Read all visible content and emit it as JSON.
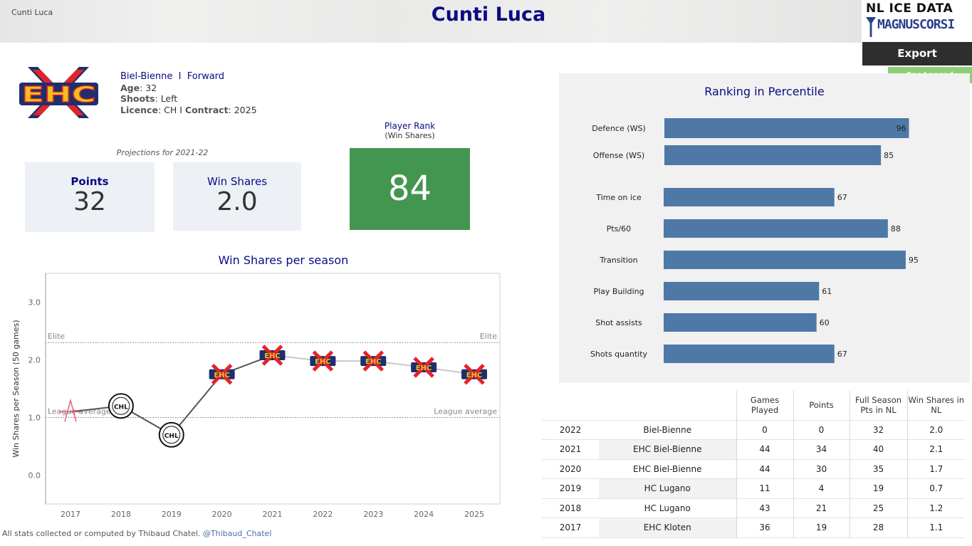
{
  "header": {
    "corner_text": "Cunti Luca",
    "title": "Cunti Luca",
    "logo_line1": "NL ICE DATA",
    "logo_line2": "MAGNUSCORSI",
    "export_label": "Export",
    "legend_label": "See Legend"
  },
  "player": {
    "team": "Biel-Bienne",
    "separator": "I",
    "position": "Forward",
    "age_label": "Age",
    "age": "32",
    "shoots_label": "Shoots",
    "shoots": "Left",
    "licence_label": "Licence",
    "licence": "CH",
    "contract_label": "Contract",
    "contract": "2025",
    "team_logo_text": "EHC"
  },
  "projections": {
    "label": "Projections for 2021-22",
    "points_label": "Points",
    "points": "32",
    "ws_label": "Win Shares",
    "ws": "2.0"
  },
  "player_rank": {
    "label": "Player Rank",
    "sublabel": "(Win Shares)",
    "value": "84",
    "color": "#43964f"
  },
  "ws_chart_title": "Win Shares per season",
  "percentile_title": "Ranking in Percentile",
  "chart_data": [
    {
      "type": "line",
      "title": "Win Shares per season",
      "ylabel": "Win Shares per Season (50 games)",
      "x": [
        "2017",
        "2018",
        "2019",
        "2020",
        "2021",
        "2022",
        "2023",
        "2024",
        "2025"
      ],
      "yticks": [
        "0.0",
        "1.0",
        "2.0",
        "3.0"
      ],
      "ylim": [
        -0.5,
        3.5
      ],
      "series": [
        {
          "values": [
            1.1,
            1.2,
            0.7,
            1.75,
            2.08,
            1.98,
            1.98,
            1.87,
            1.75
          ],
          "team_icons": [
            "kloten",
            "chl",
            "chl",
            "ehc",
            "ehc",
            "ehc",
            "ehc",
            "ehc",
            "ehc"
          ]
        }
      ],
      "reference_lines": [
        {
          "label": "Elite",
          "value": 2.3
        },
        {
          "label": "League average",
          "value": 1.0
        }
      ],
      "line_color": "#555555",
      "projection_color": "#c8c8c8"
    },
    {
      "type": "bar",
      "title": "Ranking in Percentile",
      "categories": [
        "Defence (WS)",
        "Offense (WS)",
        "Time on ice",
        "Pts/60",
        "Transition",
        "Play Building",
        "Shot assists",
        "Shots quantity"
      ],
      "values": [
        96,
        85,
        67,
        88,
        95,
        61,
        60,
        67
      ],
      "xlim": [
        0,
        100
      ],
      "bar_color": "#4e79a7"
    }
  ],
  "stats_table": {
    "headers": [
      "",
      "",
      "Games Played",
      "Points",
      "Full Season Pts in NL",
      "Win Shares in NL"
    ],
    "rows": [
      [
        "2022",
        "Biel-Bienne",
        "0",
        "0",
        "32",
        "2.0"
      ],
      [
        "2021",
        "EHC Biel-Bienne",
        "44",
        "34",
        "40",
        "2.1"
      ],
      [
        "2020",
        "EHC Biel-Bienne",
        "44",
        "30",
        "35",
        "1.7"
      ],
      [
        "2019",
        "HC Lugano",
        "11",
        "4",
        "19",
        "0.7"
      ],
      [
        "2018",
        "HC Lugano",
        "43",
        "21",
        "25",
        "1.2"
      ],
      [
        "2017",
        "EHC Kloten",
        "36",
        "19",
        "28",
        "1.1"
      ]
    ]
  },
  "footer": {
    "text": "All stats collected or computed by Thibaud Chatel.",
    "handle": "@Thibaud_Chatel"
  }
}
